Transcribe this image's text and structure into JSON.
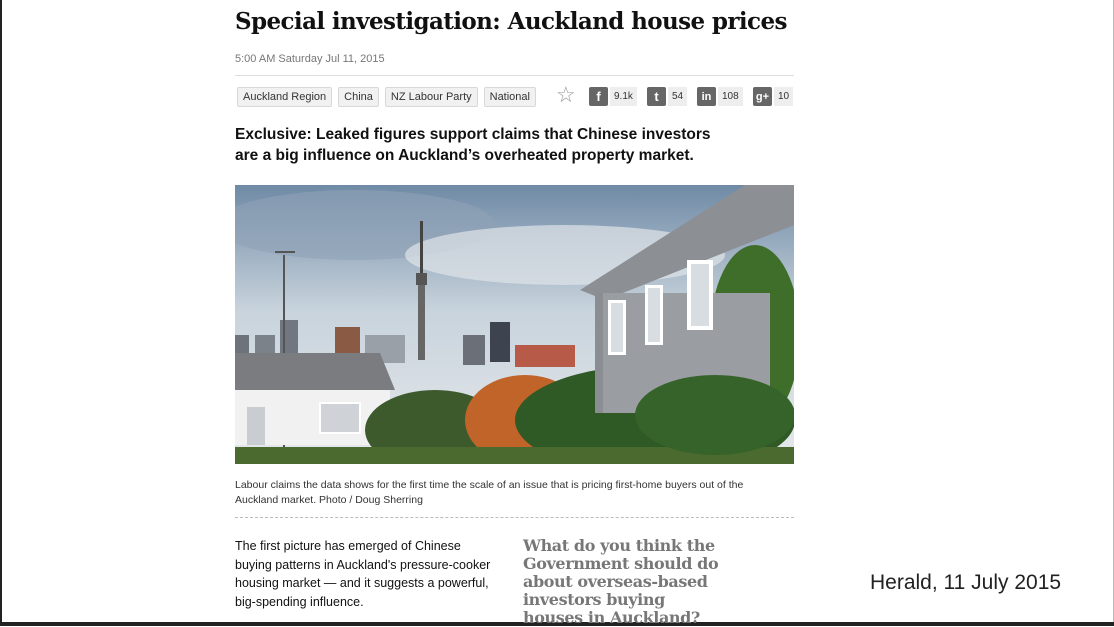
{
  "article": {
    "headline": "Special investigation: Auckland house prices",
    "dateline": "5:00 AM Saturday Jul 11, 2015",
    "tags": [
      "Auckland Region",
      "China",
      "NZ Labour Party",
      "National"
    ],
    "share": {
      "facebook": {
        "icon": "f",
        "count": "9.1k"
      },
      "twitter": {
        "icon": "t",
        "count": "54"
      },
      "linkedin": {
        "icon": "in",
        "count": "108"
      },
      "googleplus": {
        "icon": "g+",
        "count": "10"
      }
    },
    "standfirst_line1": "Exclusive: Leaked figures support claims that Chinese investors",
    "standfirst_line2": "are a big influence on Auckland’s overheated property market.",
    "caption_line1": "Labour claims the data shows for the first time the scale of an issue that is pricing first-home buyers out of the",
    "caption_line2": "Auckland market. Photo / Doug Sherring",
    "body_lines": [
      "The first picture has emerged of Chinese",
      "buying patterns in Auckland's pressure-cooker",
      "housing market — and it suggests a powerful,",
      "big-spending influence."
    ],
    "poll_lines": [
      "What do you think the",
      "Government should do",
      "about overseas-based",
      "investors buying",
      "houses in Auckland?"
    ]
  },
  "slide_caption": "Herald, 11 July 2015",
  "icons": {
    "star": "star-icon",
    "facebook": "facebook-icon",
    "twitter": "twitter-icon",
    "linkedin": "linkedin-icon",
    "googleplus": "googleplus-icon"
  }
}
